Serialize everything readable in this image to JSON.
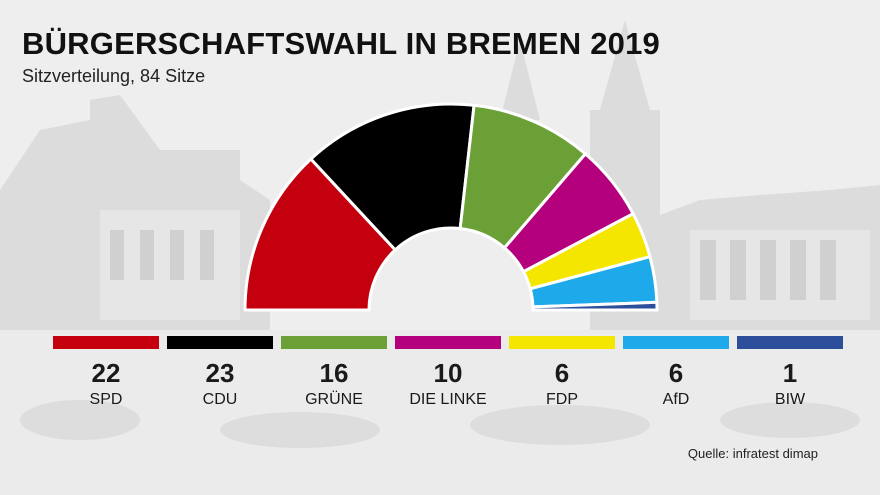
{
  "title": "BÜRGERSCHAFTSWAHL IN BREMEN 2019",
  "subtitle": "Sitzverteilung, 84 Sitze",
  "source": "Quelle: infratest dimap",
  "chart_data": {
    "type": "pie",
    "variant": "parliament-semicircle",
    "total": 84,
    "categories": [
      "SPD",
      "CDU",
      "GRÜNE",
      "DIE LINKE",
      "FDP",
      "AfD",
      "BIW"
    ],
    "values": [
      22,
      23,
      16,
      10,
      6,
      6,
      1
    ],
    "colors": [
      "#c4000e",
      "#000000",
      "#6aa036",
      "#b4007c",
      "#f5e600",
      "#1eaaea",
      "#2d4f9b"
    ]
  }
}
